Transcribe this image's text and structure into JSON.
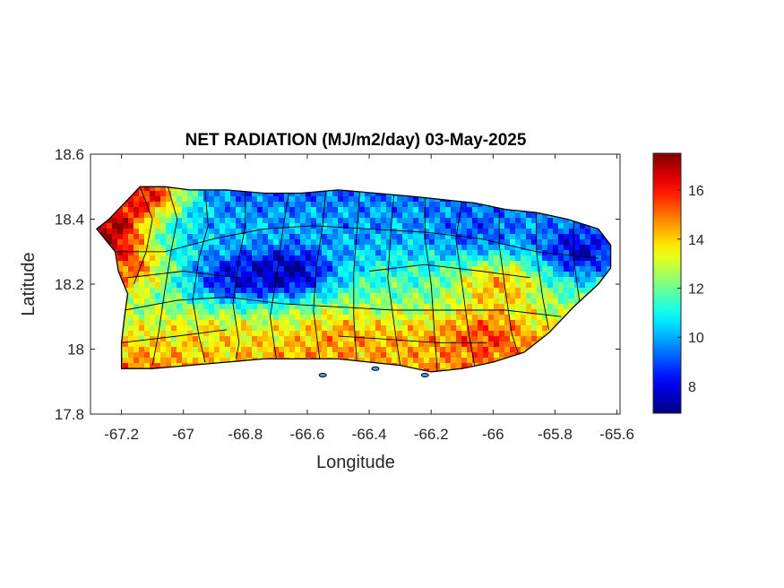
{
  "chart_data": {
    "type": "heatmap",
    "title": "NET RADIATION (MJ/m2/day) 03-May-2025",
    "xlabel": "Longitude",
    "ylabel": "Latitude",
    "xlim": [
      -67.3,
      -65.59
    ],
    "ylim": [
      17.8,
      18.6
    ],
    "xticks": [
      -67.2,
      -67,
      -66.8,
      -66.6,
      -66.4,
      -66.2,
      -66,
      -65.8,
      -65.6
    ],
    "xtick_labels": [
      "-67.2",
      "-67",
      "-66.8",
      "-66.6",
      "-66.4",
      "-66.2",
      "-66",
      "-65.8",
      "-65.6"
    ],
    "yticks": [
      17.8,
      18,
      18.2,
      18.4,
      18.6
    ],
    "ytick_labels": [
      "17.8",
      "18",
      "18.2",
      "18.4",
      "18.6"
    ],
    "colorbar": {
      "colormap": "jet",
      "range": [
        6.9,
        17.5
      ],
      "ticks": [
        8,
        10,
        12,
        14,
        16
      ],
      "tick_labels": [
        "8",
        "10",
        "12",
        "14",
        "16"
      ]
    },
    "grid": false,
    "hotspots": [
      {
        "lon": -66.65,
        "lat": 18.24,
        "value": 7.5
      },
      {
        "lon": -66.85,
        "lat": 18.22,
        "value": 8.3
      },
      {
        "lon": -65.72,
        "lat": 18.3,
        "value": 7.8
      },
      {
        "lon": -66.05,
        "lat": 18.36,
        "value": 9.0
      },
      {
        "lon": -66.4,
        "lat": 18.38,
        "value": 9.8
      },
      {
        "lon": -67.27,
        "lat": 18.37,
        "value": 17.3
      },
      {
        "lon": -67.12,
        "lat": 18.48,
        "value": 16.0
      },
      {
        "lon": -67.2,
        "lat": 18.25,
        "value": 15.2
      },
      {
        "lon": -66.02,
        "lat": 18.03,
        "value": 15.5
      },
      {
        "lon": -66.5,
        "lat": 18.02,
        "value": 14.5
      },
      {
        "lon": -66.25,
        "lat": 17.99,
        "value": 14.3
      },
      {
        "lon": -66.9,
        "lat": 18.02,
        "value": 13.8
      },
      {
        "lon": -65.98,
        "lat": 18.2,
        "value": 14.3
      }
    ]
  }
}
